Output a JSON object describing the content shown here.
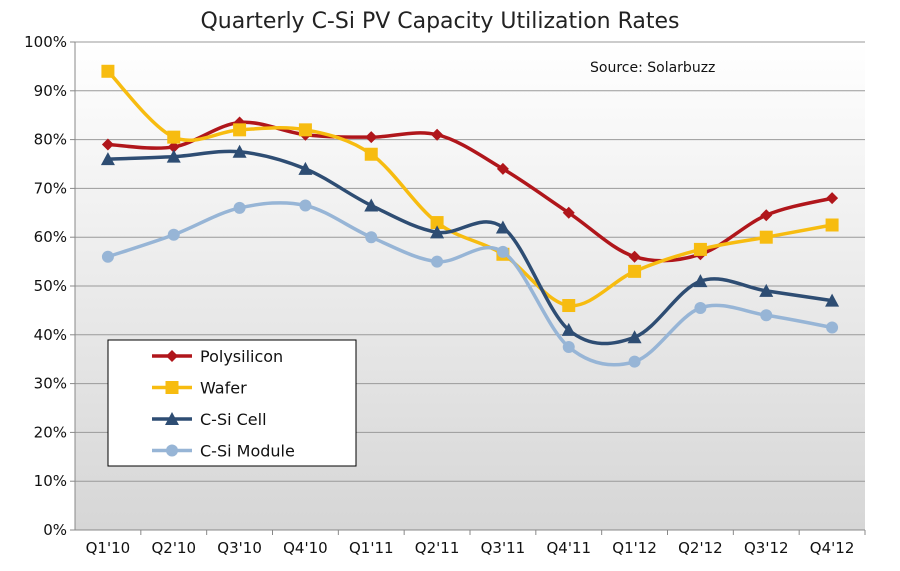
{
  "chart_data": {
    "type": "line",
    "title": "Quarterly C-Si PV Capacity Utilization Rates",
    "annotation": "Source: Solarbuzz",
    "categories": [
      "Q1'10",
      "Q2'10",
      "Q3'10",
      "Q4'10",
      "Q1'11",
      "Q2'11",
      "Q3'11",
      "Q4'11",
      "Q1'12",
      "Q2'12",
      "Q3'12",
      "Q4'12"
    ],
    "y_ticks": [
      "0%",
      "10%",
      "20%",
      "30%",
      "40%",
      "50%",
      "60%",
      "70%",
      "80%",
      "90%",
      "100%"
    ],
    "ylim": [
      0,
      100
    ],
    "grid": true,
    "legend_position": "bottom-left",
    "series": [
      {
        "name": "Polysilicon",
        "color": "#b0161b",
        "marker": "diamond",
        "values": [
          79,
          78.5,
          83.5,
          81,
          80.5,
          81,
          74,
          65,
          56,
          56.5,
          64.5,
          68
        ]
      },
      {
        "name": "Wafer",
        "color": "#f7bc10",
        "marker": "square",
        "values": [
          94,
          80.5,
          82,
          82,
          77,
          63,
          56.5,
          46,
          53,
          57.5,
          60,
          62.5
        ]
      },
      {
        "name": "C-Si Cell",
        "color": "#2e4d73",
        "marker": "triangle",
        "values": [
          76,
          76.5,
          77.5,
          74,
          66.5,
          61,
          62,
          41,
          39.5,
          51,
          49,
          47
        ]
      },
      {
        "name": "C-Si Module",
        "color": "#97b5d6",
        "marker": "circle",
        "values": [
          56,
          60.5,
          66,
          66.5,
          60,
          55,
          57,
          37.5,
          34.5,
          45.5,
          44,
          41.5
        ]
      }
    ]
  }
}
